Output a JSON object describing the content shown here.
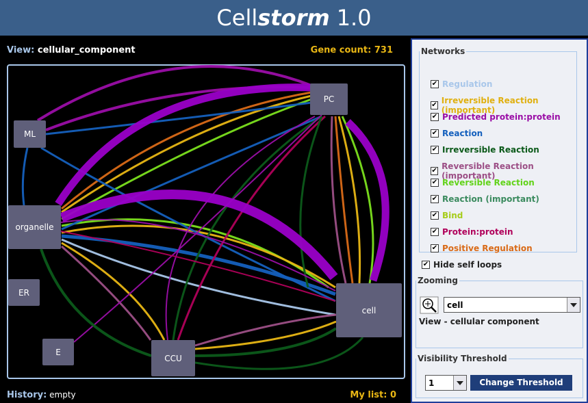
{
  "header": {
    "title_prefix": "Cell",
    "title_emphasis": "storm",
    "title_suffix": "1.0"
  },
  "view": {
    "label": "View:",
    "value": "cellular_component"
  },
  "gene_count": {
    "label": "Gene count:",
    "value": 731
  },
  "history": {
    "label": "History:",
    "value": "empty"
  },
  "my_list": {
    "label": "My list:",
    "value": 0
  },
  "nodes": [
    {
      "label": "PC"
    },
    {
      "label": "ML"
    },
    {
      "label": "organelle"
    },
    {
      "label": "ER"
    },
    {
      "label": "E"
    },
    {
      "label": "CCU"
    },
    {
      "label": "cell"
    }
  ],
  "networks": {
    "title": "Networks",
    "items": [
      {
        "label": "Regulation",
        "color": "#a9c7ea",
        "checked": true
      },
      {
        "label": "Irreversible Reaction (important)",
        "color": "#e0b010",
        "checked": true
      },
      {
        "label": "Predicted protein:protein",
        "color": "#9a0ea6",
        "checked": true
      },
      {
        "label": "Reaction",
        "color": "#1560bd",
        "checked": true
      },
      {
        "label": "Irreversible Reaction",
        "color": "#0c5a1a",
        "checked": true
      },
      {
        "label": "Reversible Reaction (important)",
        "color": "#9c4f86",
        "checked": true
      },
      {
        "label": "Reversible Reaction",
        "color": "#62d31a",
        "checked": true
      },
      {
        "label": "Reaction (important)",
        "color": "#3a8a5e",
        "checked": true
      },
      {
        "label": "Bind",
        "color": "#a6cc1a",
        "checked": true
      },
      {
        "label": "Protein:protein",
        "color": "#b0005a",
        "checked": true
      },
      {
        "label": "Positive Regulation",
        "color": "#d96a17",
        "checked": true
      }
    ]
  },
  "hide_self_loops": {
    "label": "Hide self loops",
    "checked": true
  },
  "zooming": {
    "title": "Zooming",
    "selected": "cell",
    "caption": "View - cellular  component"
  },
  "threshold": {
    "title": "Visibility Threshold",
    "selected": "1",
    "button": "Change Threshold"
  }
}
